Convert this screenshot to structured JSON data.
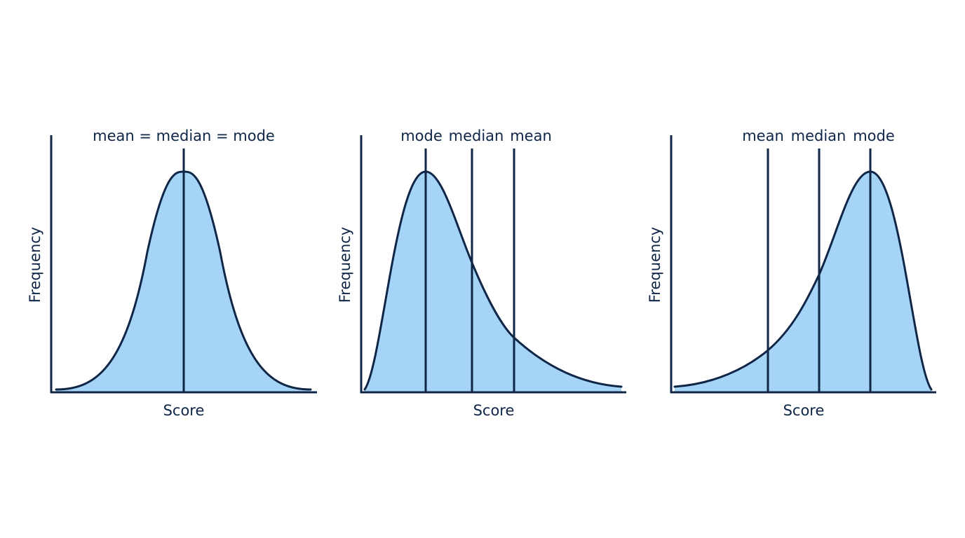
{
  "colors": {
    "ink": "#0f2647",
    "fill": "#a6d4f6"
  },
  "panels": [
    {
      "name": "symmetric",
      "y_label": "Frequency",
      "x_label": "Score",
      "top_label": "mean = median = mode",
      "markers": [
        {
          "key": "mode",
          "label": ""
        }
      ]
    },
    {
      "name": "right-skewed",
      "y_label": "Frequency",
      "x_label": "Score",
      "top_label": "",
      "markers": [
        {
          "key": "mode",
          "label": "mode"
        },
        {
          "key": "median",
          "label": "median"
        },
        {
          "key": "mean",
          "label": "mean"
        }
      ]
    },
    {
      "name": "left-skewed",
      "y_label": "Frequency",
      "x_label": "Score",
      "top_label": "",
      "markers": [
        {
          "key": "mean",
          "label": "mean"
        },
        {
          "key": "median",
          "label": "median"
        },
        {
          "key": "mode",
          "label": "mode"
        }
      ]
    }
  ]
}
